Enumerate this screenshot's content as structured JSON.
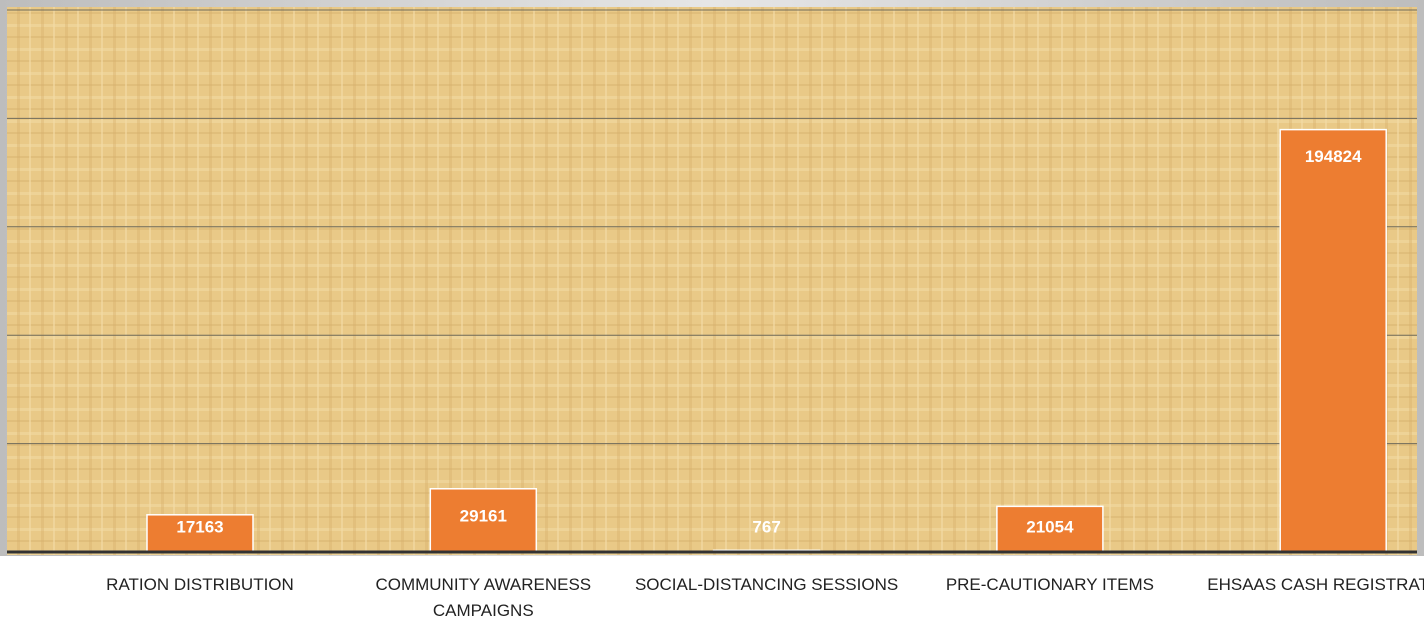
{
  "chart_data": {
    "type": "bar",
    "categories": [
      "RATION DISTRIBUTION",
      "COMMUNITY AWARENESS CAMPAIGNS",
      "SOCIAL-DISTANCING SESSIONS",
      "PRE-CAUTIONARY ITEMS",
      "EHSAAS CASH REGISTRATION"
    ],
    "values": [
      17163,
      29161,
      767,
      21054,
      194824
    ],
    "color": "#ed7d31",
    "ylim": [
      0,
      250000
    ],
    "yticks": [
      0,
      50000,
      100000,
      150000,
      200000,
      250000
    ],
    "grid": true
  }
}
